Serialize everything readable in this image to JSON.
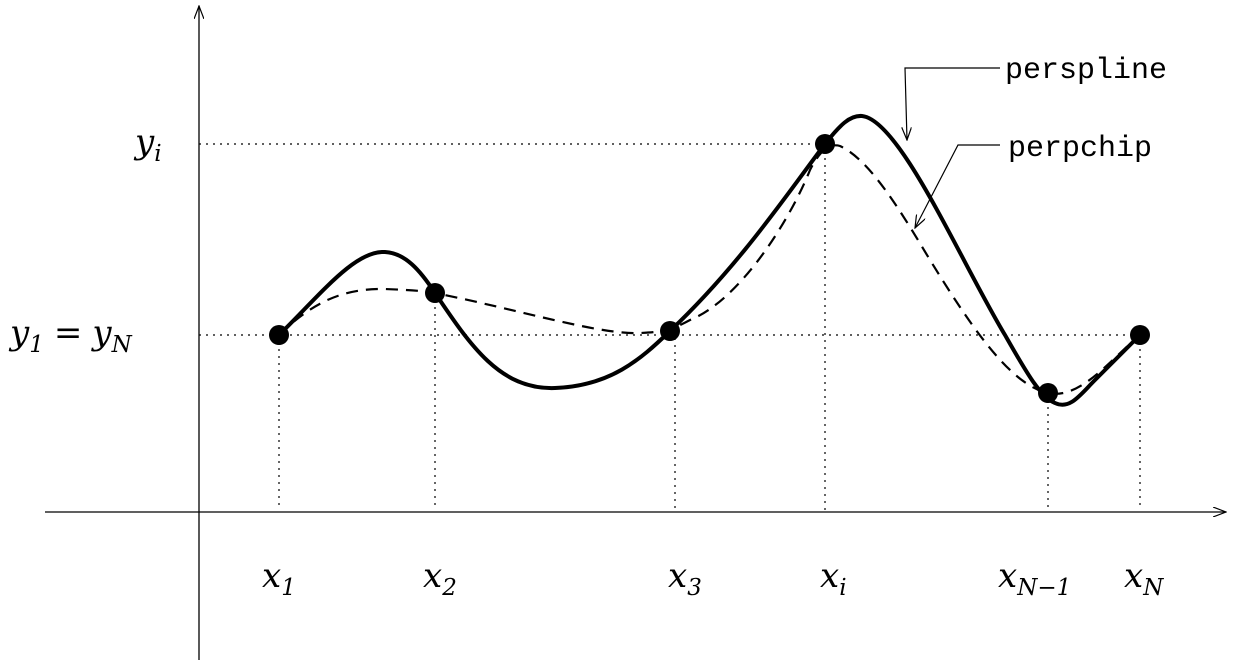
{
  "x_labels": [
    {
      "var": "x",
      "sub": "1"
    },
    {
      "var": "x",
      "sub": "2"
    },
    {
      "var": "x",
      "sub": "3"
    },
    {
      "var": "x",
      "sub": "i"
    },
    {
      "var": "x",
      "sub": "N−1"
    },
    {
      "var": "x",
      "sub": "N"
    }
  ],
  "y_labels": [
    {
      "var": "y",
      "sub": "i"
    },
    {
      "var": "y",
      "sub": "1",
      "rel": "=",
      "var2": "y",
      "sub2": "N"
    }
  ],
  "curve_labels": [
    "perspline",
    "perpchip"
  ]
}
